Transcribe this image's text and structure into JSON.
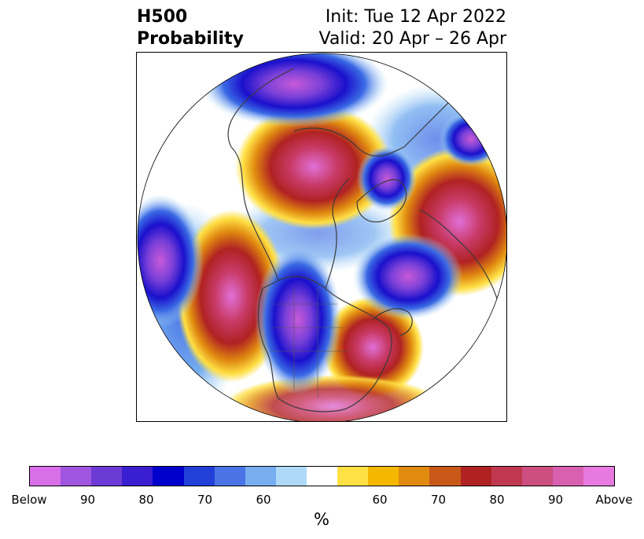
{
  "title": {
    "left_line1": "H500",
    "left_line2": "Probability",
    "right_line1": "Init: Tue 12 Apr 2022",
    "right_line2": "Valid: 20 Apr – 26 Apr"
  },
  "colorbar": {
    "colors": [
      "#d86fe8",
      "#9f55e0",
      "#6c3bd6",
      "#3a1fd0",
      "#0000cc",
      "#2240d8",
      "#4a74e6",
      "#76aef0",
      "#aedaf8",
      "#ffffff",
      "#ffe045",
      "#f4b800",
      "#e08a10",
      "#c85818",
      "#b02222",
      "#c03850",
      "#cc4f80",
      "#d860b0",
      "#e67ae0"
    ],
    "tick_labels": [
      "Below",
      "90",
      "80",
      "70",
      "60",
      "60",
      "70",
      "80",
      "90",
      "Above"
    ],
    "unit": "%"
  }
}
